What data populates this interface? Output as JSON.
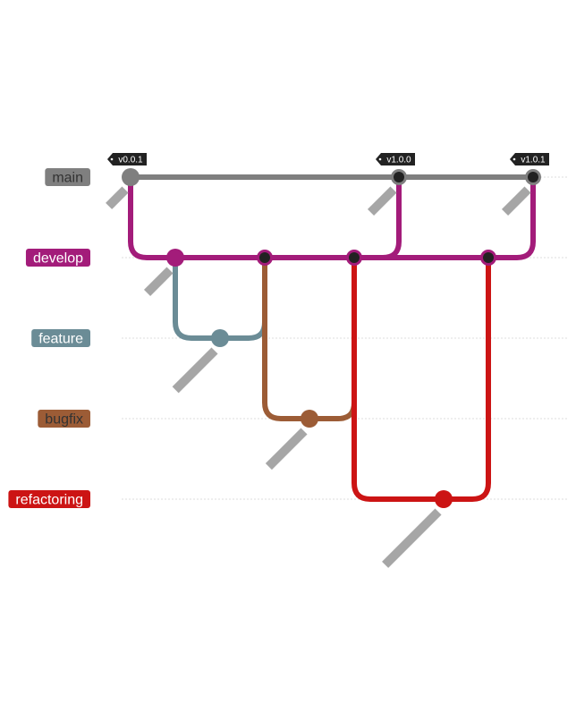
{
  "branches": [
    {
      "id": "main",
      "label": "main",
      "color": "#7f7f7f",
      "text_color": "#333333"
    },
    {
      "id": "develop",
      "label": "develop",
      "color": "#a31c7a",
      "text_color": "#ffffff"
    },
    {
      "id": "feature",
      "label": "feature",
      "color": "#6b8c96",
      "text_color": "#ffffff"
    },
    {
      "id": "bugfix",
      "label": "bugfix",
      "color": "#9c5c36",
      "text_color": "#333333"
    },
    {
      "id": "refactoring",
      "label": "refactoring",
      "color": "#cc1414",
      "text_color": "#ffffff"
    }
  ],
  "tags": [
    {
      "commit": "main-0",
      "label": "v0.0.1"
    },
    {
      "commit": "main-1",
      "label": "v1.0.0"
    },
    {
      "commit": "main-2",
      "label": "v1.0.1"
    }
  ],
  "merge_commit_color": "#222222"
}
